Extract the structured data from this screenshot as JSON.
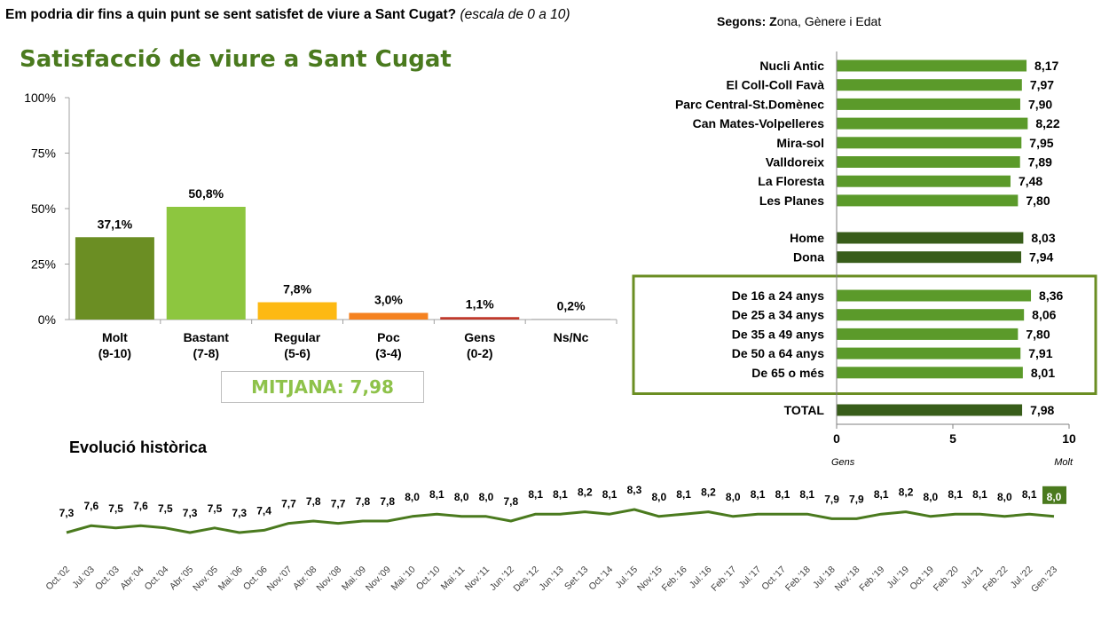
{
  "header": {
    "question": "Em podria dir fins a quin punt se sent satisfet de viure a Sant Cugat?",
    "question_note": "(escala de 0 a 10)",
    "segons_bold": "Segons:",
    "segons_rest": " Zona, Gènere i Edat",
    "segons_z": "Z"
  },
  "mitjana_label": "MITJANA: 7,98",
  "evolucio_title": "Evolució històrica",
  "chart_data": [
    {
      "type": "bar",
      "title": "Satisfacció de viure a Sant Cugat",
      "categories": [
        [
          "Molt",
          "(9-10)"
        ],
        [
          "Bastant",
          "(7-8)"
        ],
        [
          "Regular",
          "(5-6)"
        ],
        [
          "Poc",
          "(3-4)"
        ],
        [
          "Gens",
          "(0-2)"
        ],
        [
          "Ns/Nc",
          ""
        ]
      ],
      "values": [
        37.1,
        50.8,
        7.8,
        3.0,
        1.1,
        0.2
      ],
      "value_labels": [
        "37,1%",
        "50,8%",
        "7,8%",
        "3,0%",
        "1,1%",
        "0,2%"
      ],
      "colors": [
        "#6b8e23",
        "#8dc63f",
        "#fdb913",
        "#f58220",
        "#c0392b",
        "#7f7f7f"
      ],
      "yticks": [
        "0%",
        "25%",
        "50%",
        "75%",
        "100%"
      ],
      "ylim": [
        0,
        100
      ],
      "grid": false
    },
    {
      "type": "bar",
      "orientation": "horizontal",
      "groups": [
        {
          "name": "Zona",
          "color": "#5b9a2a",
          "boxed": false,
          "items": [
            {
              "label": "Nucli Antic",
              "value": 8.17,
              "text": "8,17"
            },
            {
              "label": "El Coll-Coll Favà",
              "value": 7.97,
              "text": "7,97"
            },
            {
              "label": "Parc Central-St.Domènec",
              "value": 7.9,
              "text": "7,90"
            },
            {
              "label": "Can Mates-Volpelleres",
              "value": 8.22,
              "text": "8,22"
            },
            {
              "label": "Mira-sol",
              "value": 7.95,
              "text": "7,95"
            },
            {
              "label": "Valldoreix",
              "value": 7.89,
              "text": "7,89"
            },
            {
              "label": "La Floresta",
              "value": 7.48,
              "text": "7,48"
            },
            {
              "label": "Les Planes",
              "value": 7.8,
              "text": "7,80"
            }
          ]
        },
        {
          "name": "Gènere",
          "color": "#385d1a",
          "boxed": false,
          "items": [
            {
              "label": "Home",
              "value": 8.03,
              "text": "8,03"
            },
            {
              "label": "Dona",
              "value": 7.94,
              "text": "7,94"
            }
          ]
        },
        {
          "name": "Edat",
          "color": "#5b9a2a",
          "boxed": true,
          "items": [
            {
              "label": "De 16 a 24 anys",
              "value": 8.36,
              "text": "8,36"
            },
            {
              "label": "De 25 a 34 anys",
              "value": 8.06,
              "text": "8,06"
            },
            {
              "label": "De 35 a 49 anys",
              "value": 7.8,
              "text": "7,80"
            },
            {
              "label": "De 50 a 64 anys",
              "value": 7.91,
              "text": "7,91"
            },
            {
              "label": "De 65 o més",
              "value": 8.01,
              "text": "8,01"
            }
          ]
        },
        {
          "name": "Total",
          "color": "#385d1a",
          "boxed": false,
          "items": [
            {
              "label": "TOTAL",
              "value": 7.98,
              "text": "7,98"
            }
          ]
        }
      ],
      "xlim": [
        0,
        10
      ],
      "xticks": [
        "0",
        "5",
        "10"
      ],
      "xtick_values": [
        0,
        5,
        10
      ],
      "axis_end_labels": [
        "Gens",
        "Molt"
      ]
    },
    {
      "type": "line",
      "title": "Evolució històrica",
      "x": [
        "Oct.'02",
        "Jul.'03",
        "Oct.'03",
        "Abr.'04",
        "Oct.'04",
        "Abr.'05",
        "Nov.'05",
        "Mai.'06",
        "Oct.'06",
        "Nov.'07",
        "Abr.'08",
        "Nov.'08",
        "Mai.'09",
        "Nov.'09",
        "Mai.'10",
        "Oct.'10",
        "Mai.'11",
        "Nov.'11",
        "Jun.'12",
        "Des.'12",
        "Jun.'13",
        "Set.'13",
        "Oct.'14",
        "Jul.'15",
        "Nov.'15",
        "Feb.'16",
        "Jul.'16",
        "Feb.'17",
        "Jul.'17",
        "Oct.'17",
        "Feb.'18",
        "Jul.'18",
        "Nov.'18",
        "Feb.'19",
        "Jul.'19",
        "Oct.'19",
        "Feb.'20",
        "Jul.'21",
        "Feb.'22",
        "Jul.'22",
        "Gen.'23"
      ],
      "values": [
        7.3,
        7.6,
        7.5,
        7.6,
        7.5,
        7.3,
        7.5,
        7.3,
        7.4,
        7.7,
        7.8,
        7.7,
        7.8,
        7.8,
        8.0,
        8.1,
        8.0,
        8.0,
        7.8,
        8.1,
        8.1,
        8.2,
        8.1,
        8.3,
        8.0,
        8.1,
        8.2,
        8.0,
        8.1,
        8.1,
        8.1,
        7.9,
        7.9,
        8.1,
        8.2,
        8.0,
        8.1,
        8.1,
        8.0,
        8.1,
        8.0
      ],
      "value_labels": [
        "7,3",
        "7,6",
        "7,5",
        "7,6",
        "7,5",
        "7,3",
        "7,5",
        "7,3",
        "7,4",
        "7,7",
        "7,8",
        "7,7",
        "7,8",
        "7,8",
        "8,0",
        "8,1",
        "8,0",
        "8,0",
        "7,8",
        "8,1",
        "8,1",
        "8,2",
        "8,1",
        "8,3",
        "8,0",
        "8,1",
        "8,2",
        "8,0",
        "8,1",
        "8,1",
        "8,1",
        "7,9",
        "7,9",
        "8,1",
        "8,2",
        "8,0",
        "8,1",
        "8,1",
        "8,0",
        "8,1",
        "8,0"
      ],
      "color": "#4a7a1e",
      "highlight_last": true
    }
  ]
}
